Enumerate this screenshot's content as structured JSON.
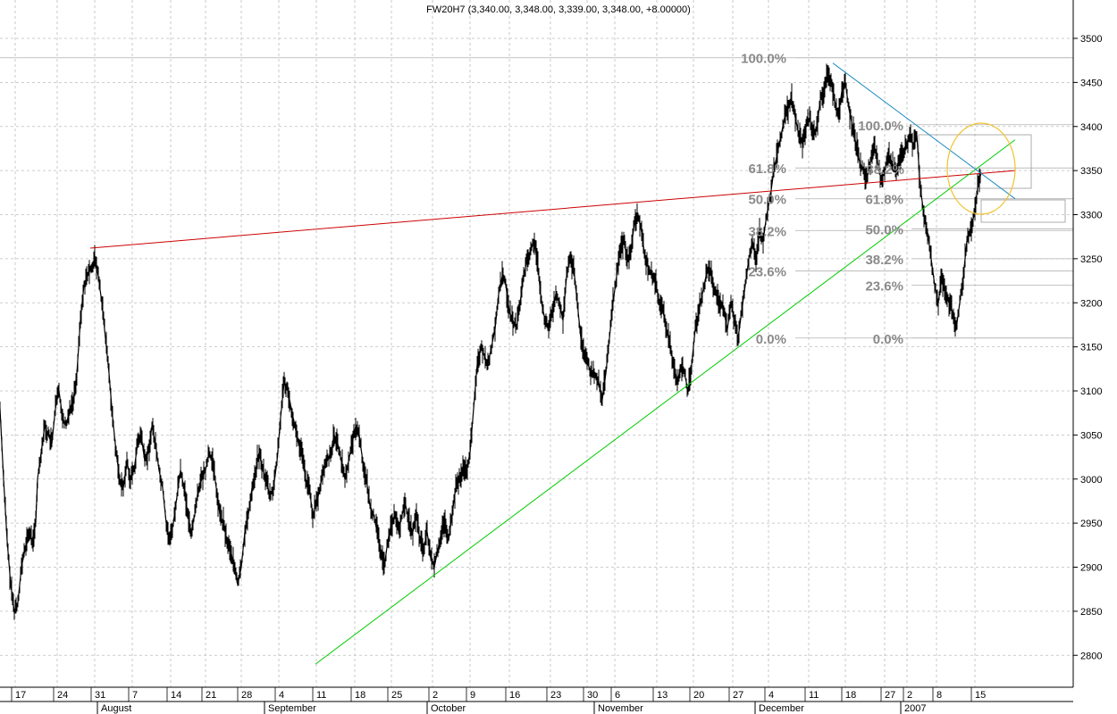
{
  "chart_data": {
    "type": "line",
    "title": "FW20H7 (3,340.00, 3,348.00, 3,339.00, 3,348.00, +8.00000)",
    "ylim": [
      2780,
      3530
    ],
    "y_ticks": [
      3500,
      3450,
      3400,
      3350,
      3300,
      3250,
      3200,
      3150,
      3100,
      3050,
      3000,
      2950,
      2900,
      2850,
      2800
    ],
    "x_day_labels": [
      "17",
      "24",
      "31",
      "7",
      "14",
      "21",
      "28",
      "4",
      "11",
      "18",
      "25",
      "2",
      "9",
      "16",
      "23",
      "30",
      "6",
      "13",
      "20",
      "27",
      "4",
      "11",
      "18",
      "27",
      "2",
      "8",
      "15"
    ],
    "x_month_labels": [
      "August",
      "September",
      "October",
      "November",
      "December",
      "2007"
    ],
    "grid": true,
    "series": [
      {
        "points": [
          [
            0,
            3080
          ],
          [
            4,
            3000
          ],
          [
            8,
            2930
          ],
          [
            12,
            2880
          ],
          [
            16,
            2850
          ],
          [
            20,
            2860
          ],
          [
            24,
            2900
          ],
          [
            28,
            2920
          ],
          [
            32,
            2940
          ],
          [
            36,
            2930
          ],
          [
            40,
            2950
          ],
          [
            42,
            3000
          ],
          [
            46,
            3030
          ],
          [
            50,
            3060
          ],
          [
            54,
            3050
          ],
          [
            58,
            3040
          ],
          [
            62,
            3080
          ],
          [
            66,
            3100
          ],
          [
            70,
            3070
          ],
          [
            74,
            3060
          ],
          [
            78,
            3080
          ],
          [
            82,
            3090
          ],
          [
            86,
            3120
          ],
          [
            90,
            3180
          ],
          [
            94,
            3220
          ],
          [
            98,
            3230
          ],
          [
            102,
            3240
          ],
          [
            106,
            3250
          ],
          [
            110,
            3230
          ],
          [
            114,
            3200
          ],
          [
            118,
            3160
          ],
          [
            122,
            3120
          ],
          [
            126,
            3070
          ],
          [
            130,
            3030
          ],
          [
            134,
            3000
          ],
          [
            138,
            2990
          ],
          [
            142,
            3020
          ],
          [
            146,
            3000
          ],
          [
            150,
            3010
          ],
          [
            154,
            3040
          ],
          [
            158,
            3050
          ],
          [
            162,
            3020
          ],
          [
            166,
            3030
          ],
          [
            170,
            3060
          ],
          [
            174,
            3040
          ],
          [
            178,
            3010
          ],
          [
            182,
            2990
          ],
          [
            186,
            2950
          ],
          [
            190,
            2930
          ],
          [
            194,
            2950
          ],
          [
            198,
            2980
          ],
          [
            202,
            3010
          ],
          [
            206,
            2990
          ],
          [
            210,
            2960
          ],
          [
            214,
            2940
          ],
          [
            218,
            2960
          ],
          [
            222,
            2990
          ],
          [
            226,
            3000
          ],
          [
            230,
            3010
          ],
          [
            234,
            3030
          ],
          [
            238,
            3020
          ],
          [
            242,
            2990
          ],
          [
            246,
            2960
          ],
          [
            250,
            2950
          ],
          [
            254,
            2930
          ],
          [
            258,
            2920
          ],
          [
            262,
            2900
          ],
          [
            266,
            2880
          ],
          [
            270,
            2900
          ],
          [
            274,
            2940
          ],
          [
            278,
            2960
          ],
          [
            282,
            2990
          ],
          [
            286,
            3010
          ],
          [
            290,
            3030
          ],
          [
            294,
            3010
          ],
          [
            298,
            3000
          ],
          [
            302,
            2980
          ],
          [
            306,
            2990
          ],
          [
            310,
            3020
          ],
          [
            314,
            3070
          ],
          [
            318,
            3110
          ],
          [
            322,
            3100
          ],
          [
            326,
            3080
          ],
          [
            330,
            3060
          ],
          [
            334,
            3040
          ],
          [
            338,
            3030
          ],
          [
            342,
            3000
          ],
          [
            346,
            2990
          ],
          [
            350,
            2960
          ],
          [
            354,
            2970
          ],
          [
            358,
            2990
          ],
          [
            362,
            3010
          ],
          [
            366,
            3020
          ],
          [
            370,
            3030
          ],
          [
            374,
            3050
          ],
          [
            378,
            3040
          ],
          [
            382,
            3020
          ],
          [
            386,
            3000
          ],
          [
            390,
            3020
          ],
          [
            394,
            3040
          ],
          [
            398,
            3060
          ],
          [
            402,
            3050
          ],
          [
            406,
            3020
          ],
          [
            410,
            3000
          ],
          [
            414,
            2970
          ],
          [
            418,
            2960
          ],
          [
            422,
            2940
          ],
          [
            426,
            2920
          ],
          [
            430,
            2900
          ],
          [
            434,
            2930
          ],
          [
            438,
            2950
          ],
          [
            442,
            2960
          ],
          [
            446,
            2940
          ],
          [
            450,
            2960
          ],
          [
            454,
            2970
          ],
          [
            458,
            2950
          ],
          [
            462,
            2940
          ],
          [
            466,
            2960
          ],
          [
            470,
            2930
          ],
          [
            474,
            2920
          ],
          [
            478,
            2940
          ],
          [
            482,
            2910
          ],
          [
            486,
            2900
          ],
          [
            490,
            2920
          ],
          [
            494,
            2940
          ],
          [
            498,
            2950
          ],
          [
            502,
            2930
          ],
          [
            506,
            2960
          ],
          [
            510,
            2990
          ],
          [
            514,
            3000
          ],
          [
            518,
            3010
          ],
          [
            522,
            3010
          ],
          [
            526,
            3030
          ],
          [
            530,
            3080
          ],
          [
            534,
            3130
          ],
          [
            538,
            3150
          ],
          [
            542,
            3140
          ],
          [
            546,
            3130
          ],
          [
            550,
            3150
          ],
          [
            554,
            3170
          ],
          [
            558,
            3210
          ],
          [
            562,
            3230
          ],
          [
            566,
            3220
          ],
          [
            570,
            3190
          ],
          [
            574,
            3180
          ],
          [
            578,
            3170
          ],
          [
            582,
            3200
          ],
          [
            586,
            3230
          ],
          [
            590,
            3250
          ],
          [
            594,
            3260
          ],
          [
            598,
            3270
          ],
          [
            602,
            3240
          ],
          [
            606,
            3200
          ],
          [
            610,
            3180
          ],
          [
            614,
            3170
          ],
          [
            618,
            3190
          ],
          [
            622,
            3210
          ],
          [
            626,
            3200
          ],
          [
            630,
            3180
          ],
          [
            634,
            3230
          ],
          [
            638,
            3250
          ],
          [
            642,
            3240
          ],
          [
            646,
            3200
          ],
          [
            650,
            3160
          ],
          [
            654,
            3140
          ],
          [
            658,
            3130
          ],
          [
            662,
            3120
          ],
          [
            666,
            3120
          ],
          [
            670,
            3110
          ],
          [
            674,
            3090
          ],
          [
            678,
            3120
          ],
          [
            682,
            3160
          ],
          [
            686,
            3200
          ],
          [
            690,
            3230
          ],
          [
            694,
            3260
          ],
          [
            698,
            3270
          ],
          [
            702,
            3250
          ],
          [
            706,
            3260
          ],
          [
            710,
            3290
          ],
          [
            714,
            3300
          ],
          [
            718,
            3280
          ],
          [
            722,
            3250
          ],
          [
            726,
            3240
          ],
          [
            730,
            3230
          ],
          [
            734,
            3220
          ],
          [
            738,
            3200
          ],
          [
            742,
            3190
          ],
          [
            746,
            3170
          ],
          [
            750,
            3150
          ],
          [
            754,
            3130
          ],
          [
            758,
            3110
          ],
          [
            762,
            3130
          ],
          [
            766,
            3120
          ],
          [
            770,
            3100
          ],
          [
            774,
            3130
          ],
          [
            778,
            3170
          ],
          [
            782,
            3190
          ],
          [
            786,
            3210
          ],
          [
            790,
            3230
          ],
          [
            794,
            3240
          ],
          [
            798,
            3220
          ],
          [
            802,
            3210
          ],
          [
            806,
            3200
          ],
          [
            810,
            3190
          ],
          [
            814,
            3170
          ],
          [
            818,
            3200
          ],
          [
            822,
            3180
          ],
          [
            826,
            3160
          ],
          [
            830,
            3190
          ],
          [
            834,
            3220
          ],
          [
            838,
            3250
          ],
          [
            842,
            3270
          ],
          [
            846,
            3250
          ],
          [
            850,
            3280
          ],
          [
            854,
            3270
          ],
          [
            858,
            3300
          ],
          [
            862,
            3320
          ],
          [
            866,
            3350
          ],
          [
            870,
            3370
          ],
          [
            874,
            3390
          ],
          [
            878,
            3410
          ],
          [
            882,
            3420
          ],
          [
            886,
            3430
          ],
          [
            890,
            3410
          ],
          [
            894,
            3390
          ],
          [
            898,
            3380
          ],
          [
            902,
            3400
          ],
          [
            906,
            3410
          ],
          [
            910,
            3390
          ],
          [
            914,
            3400
          ],
          [
            918,
            3430
          ],
          [
            922,
            3440
          ],
          [
            926,
            3460
          ],
          [
            930,
            3450
          ],
          [
            934,
            3430
          ],
          [
            938,
            3410
          ],
          [
            942,
            3440
          ],
          [
            946,
            3450
          ],
          [
            950,
            3420
          ],
          [
            954,
            3400
          ],
          [
            958,
            3380
          ],
          [
            962,
            3360
          ],
          [
            966,
            3350
          ],
          [
            970,
            3340
          ],
          [
            974,
            3360
          ],
          [
            978,
            3380
          ],
          [
            982,
            3360
          ],
          [
            986,
            3340
          ],
          [
            990,
            3350
          ],
          [
            994,
            3370
          ],
          [
            998,
            3360
          ],
          [
            1002,
            3350
          ],
          [
            1006,
            3360
          ],
          [
            1010,
            3370
          ],
          [
            1014,
            3380
          ],
          [
            1018,
            3390
          ],
          [
            1022,
            3380
          ],
          [
            1026,
            3390
          ],
          [
            1030,
            3330
          ],
          [
            1034,
            3300
          ],
          [
            1038,
            3280
          ],
          [
            1042,
            3250
          ],
          [
            1046,
            3220
          ],
          [
            1050,
            3200
          ],
          [
            1054,
            3230
          ],
          [
            1058,
            3210
          ],
          [
            1062,
            3200
          ],
          [
            1066,
            3190
          ],
          [
            1070,
            3170
          ],
          [
            1074,
            3200
          ],
          [
            1078,
            3230
          ],
          [
            1082,
            3270
          ],
          [
            1086,
            3280
          ],
          [
            1090,
            3300
          ],
          [
            1094,
            3330
          ],
          [
            1098,
            3348
          ]
        ]
      }
    ],
    "annotations": {
      "fib_left": [
        "100.0%",
        "61.8%",
        "50.0%",
        "38.2%",
        "23.6%",
        "0.0%"
      ],
      "fib_right": [
        "100.0%",
        "61.8%",
        "50.0%",
        "38.2%",
        "23.6%",
        "0.0%"
      ],
      "fib_right_extra": "38.2%",
      "fib_left_levels": [
        3478,
        3353,
        3318,
        3282,
        3236,
        3160
      ],
      "fib_right_levels": [
        3402,
        3318,
        3284,
        3250,
        3220,
        3160
      ]
    },
    "trendlines": [
      {
        "color": "#cc0000",
        "from": [
          101,
          3262
        ],
        "to": [
          1136,
          3350
        ]
      },
      {
        "color": "#00cc00",
        "from": [
          353,
          2790
        ],
        "to": [
          1136,
          3385
        ]
      },
      {
        "color": "#1f8fbf",
        "from": [
          932,
          3472
        ],
        "to": [
          1136,
          3318
        ]
      }
    ],
    "colors": {
      "price": "#000000",
      "fib_text": "#8a8a8a",
      "highlight_circle": "#f2c230"
    }
  }
}
